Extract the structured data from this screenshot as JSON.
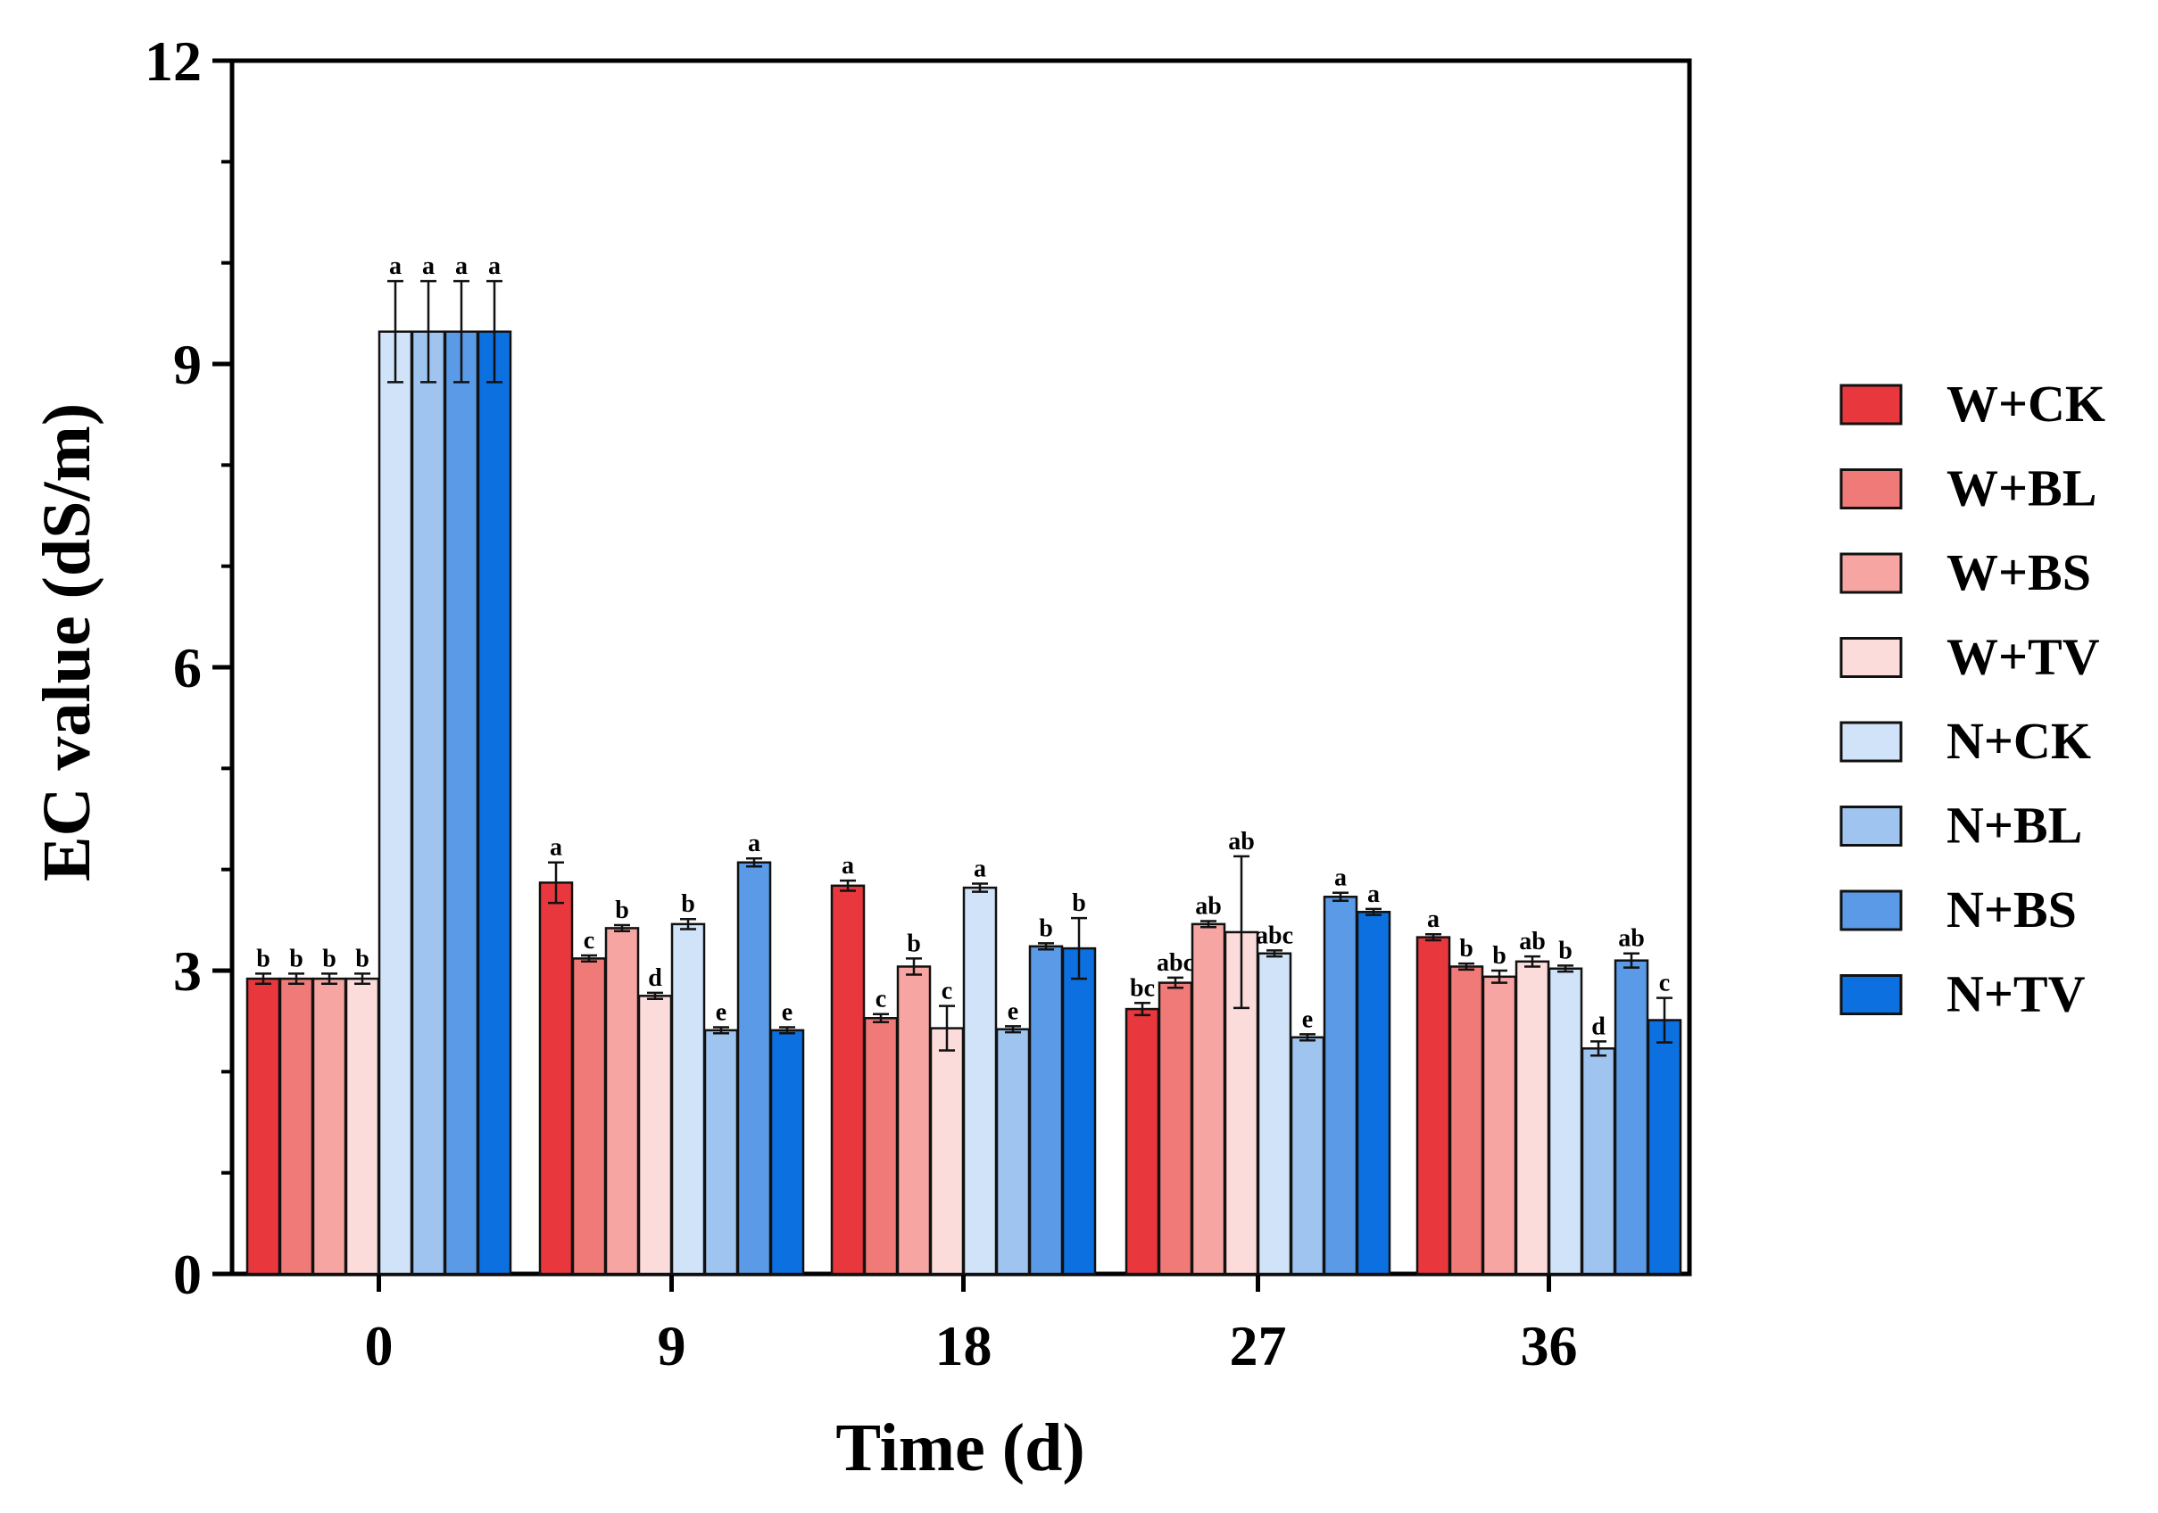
{
  "chart_data": {
    "type": "bar",
    "title": "",
    "xlabel": "Time (d)",
    "ylabel": "EC value (dS/m)",
    "ylim": [
      0,
      12
    ],
    "yticks": [
      "0",
      "3",
      "6",
      "9",
      "12"
    ],
    "ytick_values": [
      0,
      3,
      6,
      9,
      12
    ],
    "categories": [
      "0",
      "9",
      "18",
      "27",
      "36"
    ],
    "legend_position": "right",
    "series": [
      {
        "name": "W+CK",
        "color": "#e8383d",
        "values": [
          2.92,
          3.87,
          3.84,
          2.62,
          3.33
        ],
        "errors": [
          0.05,
          0.2,
          0.05,
          0.06,
          0.03
        ],
        "labels": [
          "b",
          "a",
          "a",
          "bc",
          "a"
        ]
      },
      {
        "name": "W+BL",
        "color": "#f07a78",
        "values": [
          2.92,
          3.12,
          2.53,
          2.88,
          3.04
        ],
        "errors": [
          0.05,
          0.03,
          0.04,
          0.05,
          0.03
        ],
        "labels": [
          "b",
          "c",
          "c",
          "abc",
          "b"
        ]
      },
      {
        "name": "W+BS",
        "color": "#f6a5a2",
        "values": [
          2.92,
          3.42,
          3.04,
          3.46,
          2.94
        ],
        "errors": [
          0.05,
          0.03,
          0.08,
          0.03,
          0.06
        ],
        "labels": [
          "b",
          "b",
          "b",
          "ab",
          "b"
        ]
      },
      {
        "name": "W+TV",
        "color": "#fbdcdb",
        "values": [
          2.92,
          2.75,
          2.43,
          3.38,
          3.09
        ],
        "errors": [
          0.05,
          0.03,
          0.22,
          0.75,
          0.05
        ],
        "labels": [
          "b",
          "d",
          "c",
          "ab",
          "ab"
        ]
      },
      {
        "name": "N+CK",
        "color": "#d1e3f8",
        "values": [
          9.32,
          3.46,
          3.82,
          3.17,
          3.02
        ],
        "errors": [
          0.5,
          0.05,
          0.04,
          0.03,
          0.03
        ],
        "labels": [
          "a",
          "b",
          "a",
          "abc",
          "b"
        ]
      },
      {
        "name": "N+BL",
        "color": "#9fc4f0",
        "values": [
          9.32,
          2.41,
          2.42,
          2.34,
          2.23
        ],
        "errors": [
          0.5,
          0.03,
          0.03,
          0.03,
          0.07
        ],
        "labels": [
          "a",
          "e",
          "e",
          "e",
          "d"
        ]
      },
      {
        "name": "N+BS",
        "color": "#5b9ae6",
        "values": [
          9.32,
          4.07,
          3.24,
          3.73,
          3.1
        ],
        "errors": [
          0.5,
          0.04,
          0.03,
          0.04,
          0.07
        ],
        "labels": [
          "a",
          "a",
          "b",
          "a",
          "ab"
        ]
      },
      {
        "name": "N+TV",
        "color": "#0d70e0",
        "values": [
          9.32,
          2.41,
          3.22,
          3.58,
          2.51
        ],
        "errors": [
          0.5,
          0.03,
          0.3,
          0.03,
          0.22
        ],
        "labels": [
          "a",
          "e",
          "b",
          "a",
          "c"
        ]
      }
    ]
  }
}
